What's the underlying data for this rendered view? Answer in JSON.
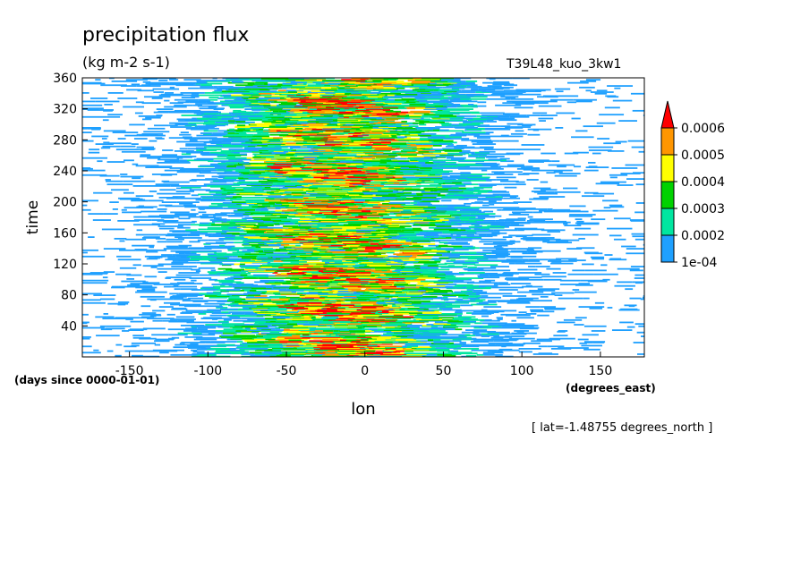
{
  "chart_data": {
    "type": "heatmap",
    "title": "precipitation flux",
    "units": "(kg m-2 s-1)",
    "experiment": "T39L48_kuo_3kw1",
    "xlabel": "lon",
    "xunits": "(degrees_east)",
    "ylabel": "time",
    "yunits": "(days since 0000-01-01)",
    "annotation": "[ lat=-1.48755 degrees_north ]",
    "xlim": [
      -180,
      178
    ],
    "ylim": [
      0,
      360
    ],
    "xticks": [
      -150,
      -100,
      -50,
      0,
      50,
      100,
      150
    ],
    "yticks": [
      40,
      80,
      120,
      160,
      200,
      240,
      280,
      320,
      360
    ],
    "grid": false,
    "legend_position": "right",
    "colorbar": {
      "levels": [
        "1e-04",
        "0.0002",
        "0.0003",
        "0.0004",
        "0.0005",
        "0.0006"
      ],
      "thresholds": [
        0.0001,
        0.0002,
        0.0003,
        0.0004,
        0.0005,
        0.0006
      ],
      "colors": [
        "#1ea0ff",
        "#00e6a0",
        "#00d200",
        "#ffff00",
        "#ff9600",
        "#ff0000"
      ],
      "extend": "max"
    },
    "peak_longitude_band": [
      -100,
      60
    ],
    "peak_value": 0.0006
  }
}
